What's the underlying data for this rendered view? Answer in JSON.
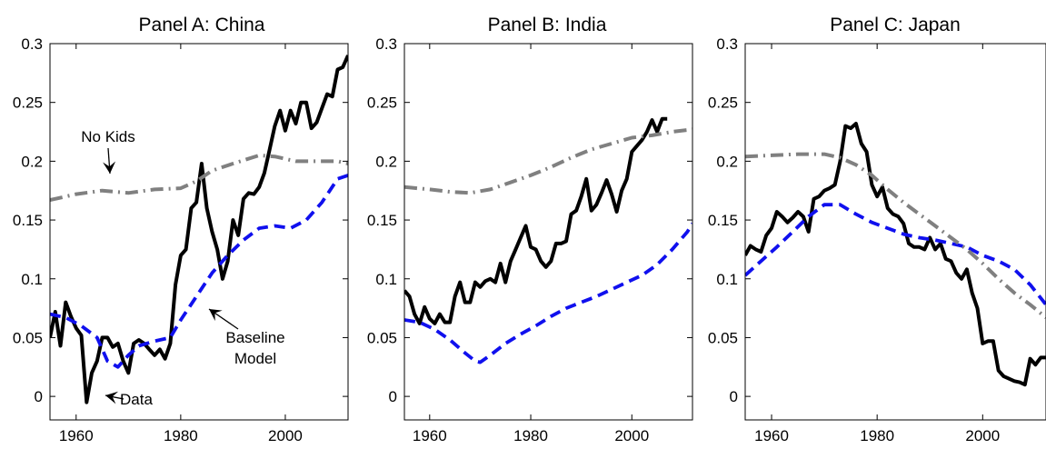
{
  "chart_data": [
    {
      "type": "line",
      "title": "Panel A: China",
      "xlim": [
        1955,
        2012
      ],
      "ylim": [
        -0.02,
        0.3
      ],
      "xticks": [
        1960,
        1980,
        2000
      ],
      "yticks": [
        0,
        0.05,
        0.1,
        0.15,
        0.2,
        0.25,
        0.3
      ],
      "ytick_labels": [
        "0",
        "0.05",
        "0.1",
        "0.15",
        "0.2",
        "0.25",
        "0.3"
      ],
      "grid": false,
      "series": [
        {
          "name": "Data",
          "color": "#000000",
          "style": "solid",
          "x": [
            1955,
            1956,
            1957,
            1958,
            1959,
            1960,
            1961,
            1962,
            1963,
            1964,
            1965,
            1966,
            1967,
            1968,
            1969,
            1970,
            1971,
            1972,
            1973,
            1974,
            1975,
            1976,
            1977,
            1978,
            1979,
            1980,
            1981,
            1982,
            1983,
            1984,
            1985,
            1986,
            1987,
            1988,
            1989,
            1990,
            1991,
            1992,
            1993,
            1994,
            1995,
            1996,
            1997,
            1998,
            1999,
            2000,
            2001,
            2002,
            2003,
            2004,
            2005,
            2006,
            2007,
            2008,
            2009,
            2010,
            2011,
            2012
          ],
          "y": [
            0.05,
            0.072,
            0.043,
            0.08,
            0.068,
            0.058,
            0.052,
            -0.005,
            0.02,
            0.03,
            0.05,
            0.05,
            0.042,
            0.045,
            0.03,
            0.02,
            0.045,
            0.048,
            0.045,
            0.04,
            0.035,
            0.04,
            0.032,
            0.045,
            0.095,
            0.12,
            0.125,
            0.16,
            0.165,
            0.198,
            0.16,
            0.14,
            0.125,
            0.1,
            0.115,
            0.15,
            0.137,
            0.168,
            0.173,
            0.172,
            0.178,
            0.19,
            0.21,
            0.23,
            0.243,
            0.226,
            0.243,
            0.232,
            0.25,
            0.25,
            0.228,
            0.233,
            0.245,
            0.257,
            0.255,
            0.278,
            0.28,
            0.29
          ]
        },
        {
          "name": "Baseline Model",
          "color": "#1010ee",
          "style": "dashed",
          "x": [
            1955,
            1958,
            1961,
            1964,
            1966,
            1968,
            1970,
            1972,
            1975,
            1978,
            1980,
            1983,
            1986,
            1989,
            1992,
            1995,
            1998,
            2001,
            2004,
            2007,
            2010,
            2012
          ],
          "y": [
            0.07,
            0.067,
            0.06,
            0.05,
            0.03,
            0.025,
            0.035,
            0.043,
            0.047,
            0.05,
            0.065,
            0.085,
            0.105,
            0.12,
            0.133,
            0.143,
            0.145,
            0.143,
            0.15,
            0.165,
            0.185,
            0.188
          ]
        },
        {
          "name": "No Kids",
          "color": "#808080",
          "style": "dashdot",
          "x": [
            1955,
            1960,
            1965,
            1970,
            1975,
            1980,
            1983,
            1986,
            1990,
            1995,
            1998,
            2002,
            2006,
            2010,
            2012
          ],
          "y": [
            0.167,
            0.172,
            0.175,
            0.173,
            0.176,
            0.177,
            0.183,
            0.192,
            0.198,
            0.205,
            0.204,
            0.2,
            0.2,
            0.2,
            0.198
          ]
        }
      ],
      "annotations": [
        {
          "text": "No Kids",
          "lines": [
            "No Kids"
          ]
        },
        {
          "text": "Baseline Model",
          "lines": [
            "Baseline",
            "Model"
          ]
        },
        {
          "text": "Data",
          "lines": [
            "Data"
          ]
        }
      ]
    },
    {
      "type": "line",
      "title": "Panel B: India",
      "xlim": [
        1955,
        2012
      ],
      "ylim": [
        -0.02,
        0.3
      ],
      "xticks": [
        1960,
        1980,
        2000
      ],
      "yticks": [
        0,
        0.05,
        0.1,
        0.15,
        0.2,
        0.25,
        0.3
      ],
      "ytick_labels": [
        "0",
        "0.05",
        "0.1",
        "0.15",
        "0.2",
        "0.25",
        "0.3"
      ],
      "grid": false,
      "series": [
        {
          "name": "Data",
          "color": "#000000",
          "style": "solid",
          "x": [
            1955,
            1956,
            1957,
            1958,
            1959,
            1960,
            1961,
            1962,
            1963,
            1964,
            1965,
            1966,
            1967,
            1968,
            1969,
            1970,
            1971,
            1972,
            1973,
            1974,
            1975,
            1976,
            1977,
            1978,
            1979,
            1980,
            1981,
            1982,
            1983,
            1984,
            1985,
            1986,
            1987,
            1988,
            1989,
            1990,
            1991,
            1992,
            1993,
            1994,
            1995,
            1996,
            1997,
            1998,
            1999,
            2000,
            2001,
            2002,
            2003,
            2004,
            2005,
            2006,
            2007
          ],
          "y": [
            0.09,
            0.085,
            0.07,
            0.062,
            0.076,
            0.066,
            0.062,
            0.07,
            0.063,
            0.063,
            0.085,
            0.097,
            0.08,
            0.08,
            0.097,
            0.093,
            0.098,
            0.1,
            0.097,
            0.113,
            0.097,
            0.115,
            0.125,
            0.135,
            0.145,
            0.127,
            0.125,
            0.115,
            0.11,
            0.115,
            0.13,
            0.13,
            0.132,
            0.155,
            0.158,
            0.17,
            0.185,
            0.158,
            0.163,
            0.173,
            0.184,
            0.172,
            0.157,
            0.175,
            0.185,
            0.208,
            0.213,
            0.218,
            0.225,
            0.235,
            0.225,
            0.236,
            0.236
          ]
        },
        {
          "name": "Baseline Model",
          "color": "#1010ee",
          "style": "dashed",
          "x": [
            1955,
            1958,
            1961,
            1964,
            1967,
            1969,
            1970,
            1972,
            1975,
            1978,
            1981,
            1984,
            1987,
            1990,
            1993,
            1996,
            1999,
            2002,
            2005,
            2008,
            2011,
            2012
          ],
          "y": [
            0.065,
            0.063,
            0.057,
            0.048,
            0.037,
            0.03,
            0.029,
            0.035,
            0.045,
            0.053,
            0.06,
            0.068,
            0.075,
            0.08,
            0.085,
            0.091,
            0.097,
            0.103,
            0.112,
            0.125,
            0.14,
            0.147
          ]
        },
        {
          "name": "No Kids",
          "color": "#808080",
          "style": "dashdot",
          "x": [
            1955,
            1960,
            1964,
            1968,
            1972,
            1976,
            1980,
            1984,
            1988,
            1992,
            1996,
            2000,
            2004,
            2008,
            2012
          ],
          "y": [
            0.178,
            0.176,
            0.174,
            0.173,
            0.176,
            0.182,
            0.188,
            0.195,
            0.203,
            0.21,
            0.215,
            0.22,
            0.222,
            0.225,
            0.227
          ]
        }
      ]
    },
    {
      "type": "line",
      "title": "Panel C: Japan",
      "xlim": [
        1955,
        2012
      ],
      "ylim": [
        -0.02,
        0.3
      ],
      "xticks": [
        1960,
        1980,
        2000
      ],
      "yticks": [
        0,
        0.05,
        0.1,
        0.15,
        0.2,
        0.25,
        0.3
      ],
      "ytick_labels": [
        "0",
        "0.05",
        "0.1",
        "0.15",
        "0.2",
        "0.25",
        "0.3"
      ],
      "grid": false,
      "series": [
        {
          "name": "Data",
          "color": "#000000",
          "style": "solid",
          "x": [
            1955,
            1956,
            1957,
            1958,
            1959,
            1960,
            1961,
            1962,
            1963,
            1964,
            1965,
            1966,
            1967,
            1968,
            1969,
            1970,
            1971,
            1972,
            1973,
            1974,
            1975,
            1976,
            1977,
            1978,
            1979,
            1980,
            1981,
            1982,
            1983,
            1984,
            1985,
            1986,
            1987,
            1988,
            1989,
            1990,
            1991,
            1992,
            1993,
            1994,
            1995,
            1996,
            1997,
            1998,
            1999,
            2000,
            2001,
            2002,
            2003,
            2004,
            2005,
            2006,
            2007,
            2008,
            2009,
            2010,
            2011,
            2012
          ],
          "y": [
            0.12,
            0.128,
            0.125,
            0.123,
            0.137,
            0.143,
            0.157,
            0.153,
            0.148,
            0.152,
            0.157,
            0.153,
            0.14,
            0.168,
            0.17,
            0.175,
            0.177,
            0.18,
            0.2,
            0.23,
            0.228,
            0.232,
            0.215,
            0.208,
            0.18,
            0.17,
            0.178,
            0.16,
            0.155,
            0.153,
            0.147,
            0.13,
            0.127,
            0.127,
            0.125,
            0.135,
            0.125,
            0.13,
            0.117,
            0.115,
            0.105,
            0.1,
            0.108,
            0.088,
            0.075,
            0.045,
            0.047,
            0.047,
            0.022,
            0.017,
            0.015,
            0.013,
            0.012,
            0.01,
            0.032,
            0.027,
            0.033,
            0.033
          ]
        },
        {
          "name": "Baseline Model",
          "color": "#1010ee",
          "style": "dashed",
          "x": [
            1955,
            1958,
            1961,
            1964,
            1967,
            1970,
            1973,
            1976,
            1979,
            1982,
            1985,
            1988,
            1991,
            1994,
            1997,
            2000,
            2003,
            2006,
            2009,
            2012
          ],
          "y": [
            0.103,
            0.115,
            0.127,
            0.14,
            0.153,
            0.163,
            0.163,
            0.155,
            0.148,
            0.143,
            0.138,
            0.135,
            0.133,
            0.13,
            0.127,
            0.12,
            0.115,
            0.108,
            0.095,
            0.078
          ]
        },
        {
          "name": "No Kids",
          "color": "#808080",
          "style": "dashdot",
          "x": [
            1955,
            1960,
            1965,
            1970,
            1973,
            1976,
            1979,
            1982,
            1985,
            1988,
            1991,
            1994,
            1997,
            2000,
            2003,
            2006,
            2009,
            2012
          ],
          "y": [
            0.204,
            0.205,
            0.206,
            0.206,
            0.203,
            0.197,
            0.188,
            0.176,
            0.165,
            0.155,
            0.145,
            0.135,
            0.125,
            0.113,
            0.1,
            0.088,
            0.078,
            0.067
          ]
        }
      ]
    }
  ]
}
